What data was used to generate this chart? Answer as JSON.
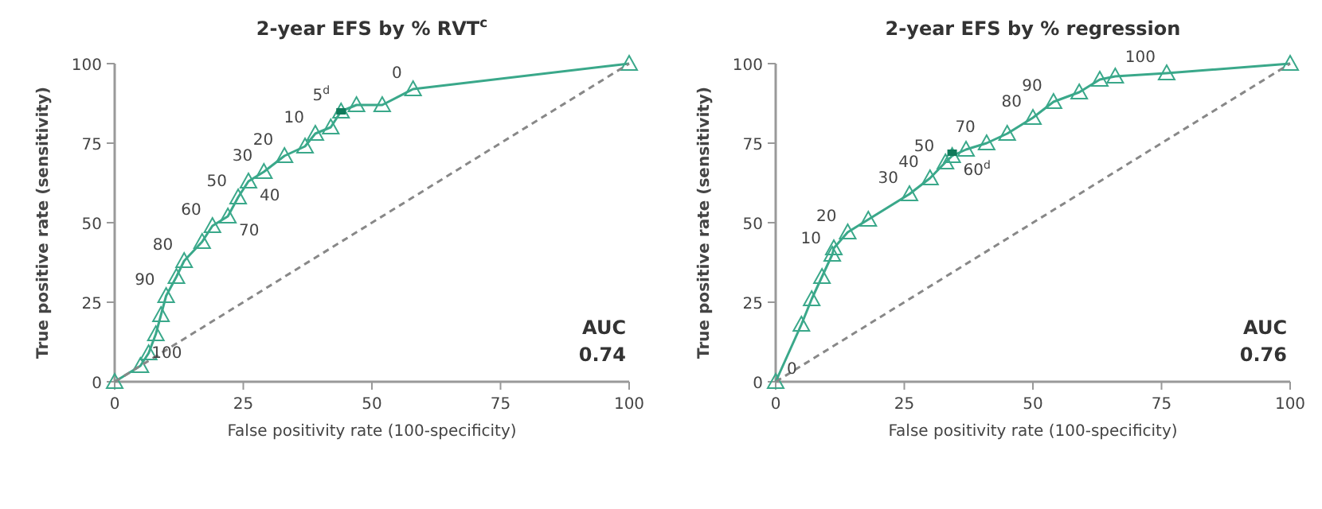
{
  "chart_data": [
    {
      "type": "line",
      "title": "2-year EFS by % RVT$^{c}$",
      "xlabel": "False positivity rate (100-specificity)",
      "ylabel": "True positive rate (sensitivity)",
      "xlim": [
        0,
        100
      ],
      "ylim": [
        0,
        100
      ],
      "xticks": [
        0,
        25,
        50,
        75,
        100
      ],
      "yticks": [
        0,
        25,
        50,
        75,
        100
      ],
      "series": [
        {
          "color": "#3aa88a",
          "marker": "triangle",
          "line_style": "solid",
          "x": [
            0,
            5,
            6.6,
            8,
            9,
            10,
            12,
            13.5,
            17,
            19,
            22,
            24,
            26,
            29,
            33,
            37,
            39,
            42,
            44,
            47,
            52,
            58,
            100
          ],
          "values": [
            0,
            5,
            9,
            15,
            21,
            27,
            33,
            38,
            44,
            49,
            52,
            58,
            63,
            66,
            71,
            74,
            78,
            80,
            85,
            87,
            87,
            92,
            100
          ]
        },
        {
          "type": "scatter",
          "color": "#0f7a5a",
          "marker": "square",
          "x": [
            44
          ],
          "values": [
            85
          ]
        },
        {
          "type": "line",
          "color": "#888888",
          "marker": "none",
          "line_style": "dashed",
          "x": [
            0,
            100
          ],
          "values": [
            0,
            100
          ]
        }
      ],
      "annotations": [
        {
          "text": "0",
          "x": 58,
          "y": 92
        },
        {
          "text": "5$^{d}$",
          "x": 44,
          "y": 85
        },
        {
          "text": "10",
          "x": 39,
          "y": 78
        },
        {
          "text": "20",
          "x": 33,
          "y": 71
        },
        {
          "text": "30",
          "x": 29,
          "y": 66
        },
        {
          "text": "40",
          "x": 26,
          "y": 63
        },
        {
          "text": "50",
          "x": 24,
          "y": 58
        },
        {
          "text": "60",
          "x": 19,
          "y": 49
        },
        {
          "text": "70",
          "x": 22,
          "y": 52
        },
        {
          "text": "80",
          "x": 13.5,
          "y": 38
        },
        {
          "text": "90",
          "x": 10,
          "y": 27
        },
        {
          "text": "100",
          "x": 5,
          "y": 5
        },
        "AUC",
        "0.74"
      ]
    },
    {
      "type": "line",
      "title": "2-year EFS by % regression",
      "xlabel": "False positivity rate (100-specificity)",
      "ylabel": "True positive rate (sensitivity)",
      "xlim": [
        0,
        100
      ],
      "ylim": [
        0,
        100
      ],
      "xticks": [
        0,
        25,
        50,
        75,
        100
      ],
      "yticks": [
        0,
        25,
        50,
        75,
        100
      ],
      "series": [
        {
          "color": "#3aa88a",
          "marker": "triangle",
          "line_style": "solid",
          "x": [
            0,
            5,
            7,
            9,
            11,
            11.3,
            14,
            18,
            26,
            30,
            33,
            34.3,
            37,
            41,
            45,
            50,
            54,
            59,
            63,
            66,
            76,
            100
          ],
          "values": [
            0,
            18,
            26,
            33,
            40,
            42,
            47,
            51,
            59,
            64,
            69,
            71,
            73,
            75,
            78,
            83,
            88,
            91,
            95,
            96,
            97,
            100
          ]
        },
        {
          "type": "scatter",
          "color": "#0f7a5a",
          "marker": "square",
          "x": [
            34.3
          ],
          "values": [
            72
          ]
        },
        {
          "type": "line",
          "color": "#888888",
          "marker": "none",
          "line_style": "dashed",
          "x": [
            0,
            100
          ],
          "values": [
            0,
            100
          ]
        }
      ],
      "annotations": [
        {
          "text": "0",
          "x": 0,
          "y": 0
        },
        {
          "text": "10",
          "x": 11,
          "y": 40
        },
        {
          "text": "20",
          "x": 14,
          "y": 47
        },
        {
          "text": "30",
          "x": 26,
          "y": 59
        },
        {
          "text": "40",
          "x": 30,
          "y": 64
        },
        {
          "text": "50",
          "x": 33,
          "y": 69
        },
        {
          "text": "60$^{d}$",
          "x": 34.3,
          "y": 71
        },
        {
          "text": "70",
          "x": 41,
          "y": 75
        },
        {
          "text": "80",
          "x": 50,
          "y": 83
        },
        {
          "text": "90",
          "x": 54,
          "y": 88
        },
        {
          "text": "100",
          "x": 76,
          "y": 97
        },
        "AUC",
        "0.76"
      ]
    }
  ]
}
